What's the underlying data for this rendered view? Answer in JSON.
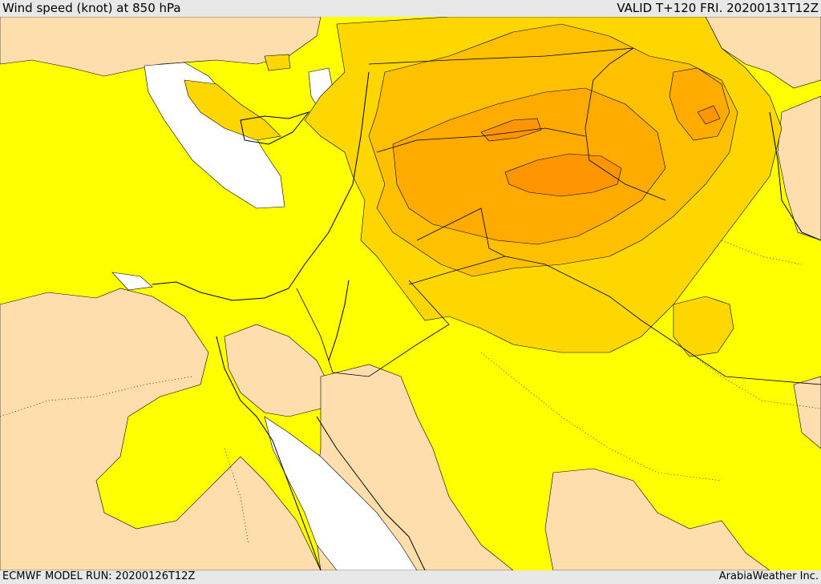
{
  "header": {
    "title": "Wind speed (knot) at 850 hPa",
    "valid": "VALID T+120 FRI. 20200131T12Z"
  },
  "footer": {
    "model_run": "ECMWF MODEL RUN: 20200126T12Z",
    "credit": "ArabiaWeather Inc."
  },
  "colors": {
    "weak": "#ffdead",
    "light": "#ffff00",
    "moderate": "#ffd700",
    "strong": "#ffc000",
    "stronger": "#ffab00",
    "strongest": "#ff9500",
    "calm": "#ffffff"
  }
}
